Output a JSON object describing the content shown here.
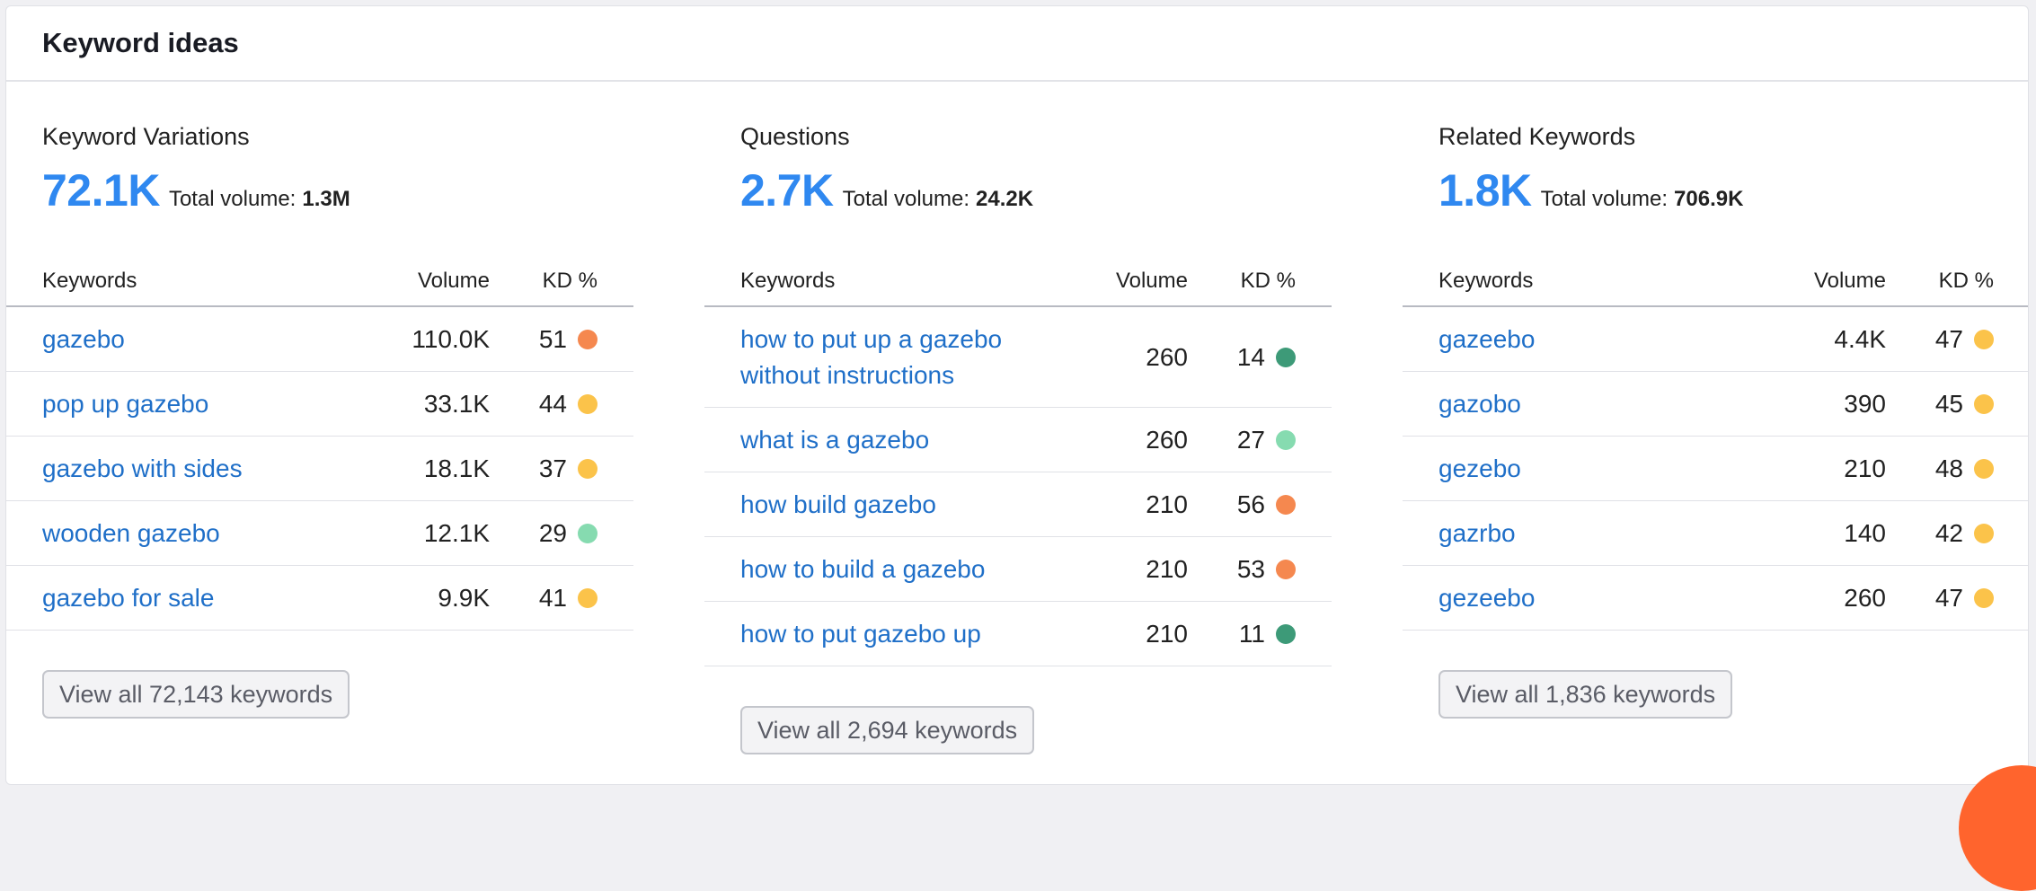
{
  "card_title": "Keyword ideas",
  "colors": {
    "accent_blue": "#2f88f0",
    "link_blue": "#1f6fc8",
    "kd_orange": "#f5884f",
    "kd_yellow": "#fbc34a",
    "kd_light_green": "#86dbb0",
    "kd_dark_green": "#3d9a78",
    "fab_orange": "#ff642d"
  },
  "columns": [
    {
      "title": "Keyword Variations",
      "big_number": "72.1K",
      "total_label": "Total volume:",
      "total_value": "1.3M",
      "headers": {
        "keywords": "Keywords",
        "volume": "Volume",
        "kd": "KD %"
      },
      "rows": [
        {
          "keyword": "gazebo",
          "volume": "110.0K",
          "kd": "51",
          "dot": "#f5884f"
        },
        {
          "keyword": "pop up gazebo",
          "volume": "33.1K",
          "kd": "44",
          "dot": "#fbc34a"
        },
        {
          "keyword": "gazebo with sides",
          "volume": "18.1K",
          "kd": "37",
          "dot": "#fbc34a"
        },
        {
          "keyword": "wooden gazebo",
          "volume": "12.1K",
          "kd": "29",
          "dot": "#86dbb0"
        },
        {
          "keyword": "gazebo for sale",
          "volume": "9.9K",
          "kd": "41",
          "dot": "#fbc34a"
        }
      ],
      "button": "View all 72,143 keywords"
    },
    {
      "title": "Questions",
      "big_number": "2.7K",
      "total_label": "Total volume:",
      "total_value": "24.2K",
      "headers": {
        "keywords": "Keywords",
        "volume": "Volume",
        "kd": "KD %"
      },
      "rows": [
        {
          "keyword": "how to put up a gazebo without instructions",
          "volume": "260",
          "kd": "14",
          "dot": "#3d9a78"
        },
        {
          "keyword": "what is a gazebo",
          "volume": "260",
          "kd": "27",
          "dot": "#86dbb0"
        },
        {
          "keyword": "how build gazebo",
          "volume": "210",
          "kd": "56",
          "dot": "#f5884f"
        },
        {
          "keyword": "how to build a gazebo",
          "volume": "210",
          "kd": "53",
          "dot": "#f5884f"
        },
        {
          "keyword": "how to put gazebo up",
          "volume": "210",
          "kd": "11",
          "dot": "#3d9a78"
        }
      ],
      "button": "View all 2,694 keywords"
    },
    {
      "title": "Related Keywords",
      "big_number": "1.8K",
      "total_label": "Total volume:",
      "total_value": "706.9K",
      "headers": {
        "keywords": "Keywords",
        "volume": "Volume",
        "kd": "KD %"
      },
      "rows": [
        {
          "keyword": "gazeebo",
          "volume": "4.4K",
          "kd": "47",
          "dot": "#fbc34a"
        },
        {
          "keyword": "gazobo",
          "volume": "390",
          "kd": "45",
          "dot": "#fbc34a"
        },
        {
          "keyword": "gezebo",
          "volume": "210",
          "kd": "48",
          "dot": "#fbc34a"
        },
        {
          "keyword": "gazrbo",
          "volume": "140",
          "kd": "42",
          "dot": "#fbc34a"
        },
        {
          "keyword": "gezeebo",
          "volume": "260",
          "kd": "47",
          "dot": "#fbc34a"
        }
      ],
      "button": "View all 1,836 keywords"
    }
  ]
}
